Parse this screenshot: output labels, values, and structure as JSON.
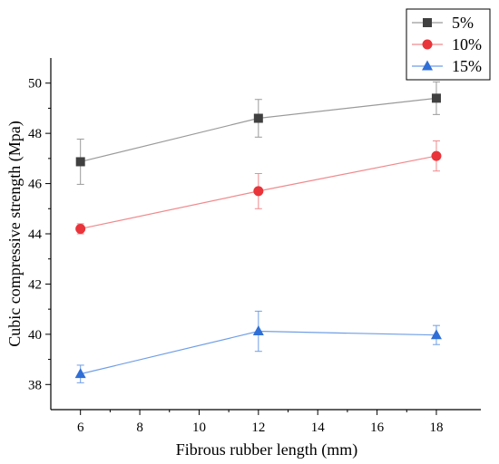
{
  "chart_data": {
    "type": "line",
    "title": "",
    "xlabel": "Fibrous rubber length (mm)",
    "ylabel": "Cubic compressive strength (Mpa)",
    "xlim": [
      5,
      19.5
    ],
    "ylim": [
      37,
      51
    ],
    "xticks": [
      6,
      8,
      10,
      12,
      14,
      16,
      18
    ],
    "yticks": [
      38,
      40,
      42,
      44,
      46,
      48,
      50
    ],
    "x": [
      6,
      12,
      18
    ],
    "grid": false,
    "legend_position": "top-right",
    "series": [
      {
        "name": "5%",
        "values": [
          46.87,
          48.6,
          49.4
        ],
        "error": [
          0.9,
          0.75,
          0.65
        ],
        "color": "#404040",
        "line_color": "#9a9a9a",
        "marker": "square"
      },
      {
        "name": "10%",
        "values": [
          44.2,
          45.7,
          47.1
        ],
        "error": [
          0.2,
          0.7,
          0.6
        ],
        "color": "#e8343a",
        "line_color": "#f08a8d",
        "marker": "circle"
      },
      {
        "name": "15%",
        "values": [
          38.42,
          40.12,
          39.97
        ],
        "error": [
          0.35,
          0.8,
          0.38
        ],
        "color": "#2f6fd6",
        "line_color": "#6f9ee6",
        "marker": "triangle"
      }
    ]
  }
}
